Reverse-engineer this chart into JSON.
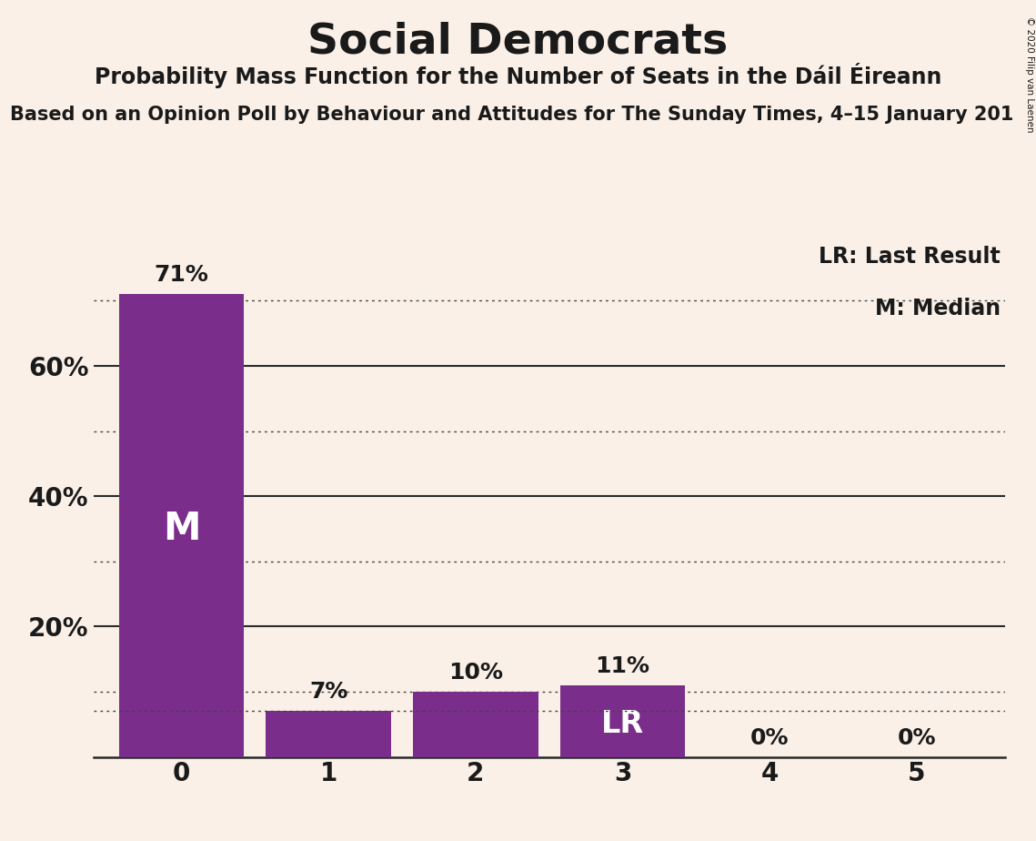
{
  "title": "Social Democrats",
  "subtitle": "Probability Mass Function for the Number of Seats in the Dáil Éireann",
  "sub_subtitle": "Based on an Opinion Poll by Behaviour and Attitudes for The Sunday Times, 4–15 January 201",
  "copyright": "© 2020 Filip van Laenen",
  "categories": [
    0,
    1,
    2,
    3,
    4,
    5
  ],
  "values": [
    0.71,
    0.07,
    0.1,
    0.11,
    0.0,
    0.0
  ],
  "bar_color": "#7B2D8B",
  "background_color": "#FAF0E8",
  "median_bar": 0,
  "lr_bar": 3,
  "median_line_y": 0.07,
  "yticks": [
    0.0,
    0.2,
    0.4,
    0.6
  ],
  "ytick_labels": [
    "",
    "20%",
    "40%",
    "60%"
  ],
  "solid_gridlines": [
    0.2,
    0.4,
    0.6
  ],
  "dotted_gridlines": [
    0.1,
    0.3,
    0.5,
    0.7
  ],
  "legend_lr_text": "LR: Last Result",
  "legend_m_text": "M: Median",
  "bar_labels": [
    "71%",
    "7%",
    "10%",
    "11%",
    "0%",
    "0%"
  ],
  "M_label_color": "#FFFFFF",
  "LR_label_color": "#FFFFFF",
  "bar_label_color": "#1A1A1A",
  "title_fontsize": 34,
  "subtitle_fontsize": 17,
  "sub_subtitle_fontsize": 15,
  "legend_fontsize": 17,
  "ytick_fontsize": 20,
  "xtick_fontsize": 20,
  "bar_label_fontsize": 18,
  "M_fontsize": 30,
  "LR_fontsize": 24,
  "ylim": [
    0,
    0.8
  ]
}
